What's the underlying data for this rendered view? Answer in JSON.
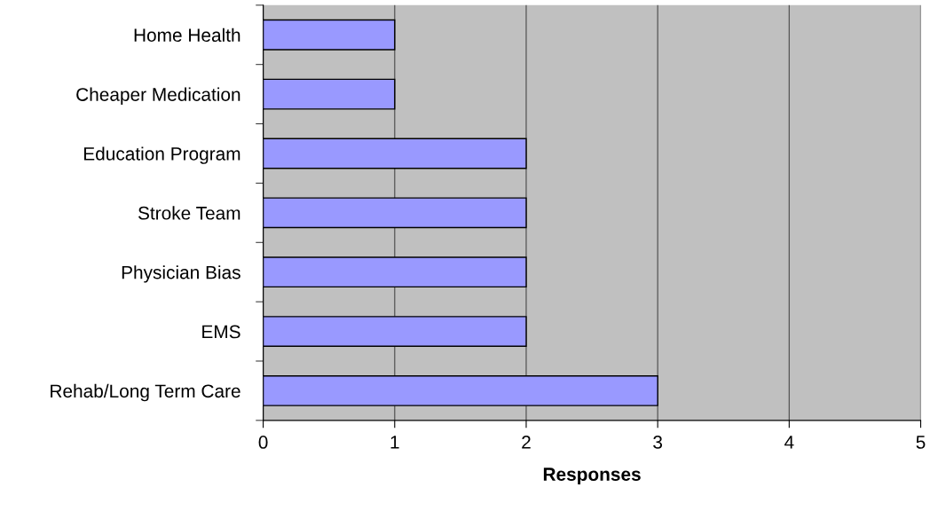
{
  "chart_data": {
    "type": "bar",
    "orientation": "horizontal",
    "xlabel": "Responses",
    "categories": [
      "Home Health",
      "Cheaper Medication",
      "Education Program",
      "Stroke Team",
      "Physician Bias",
      "EMS",
      "Rehab/Long Term Care"
    ],
    "values": [
      1,
      1,
      2,
      2,
      2,
      2,
      3
    ],
    "color": "#9999ff",
    "xlim": [
      0,
      5
    ],
    "xticks": [
      0,
      1,
      2,
      3,
      4,
      5
    ],
    "grid": "x"
  }
}
